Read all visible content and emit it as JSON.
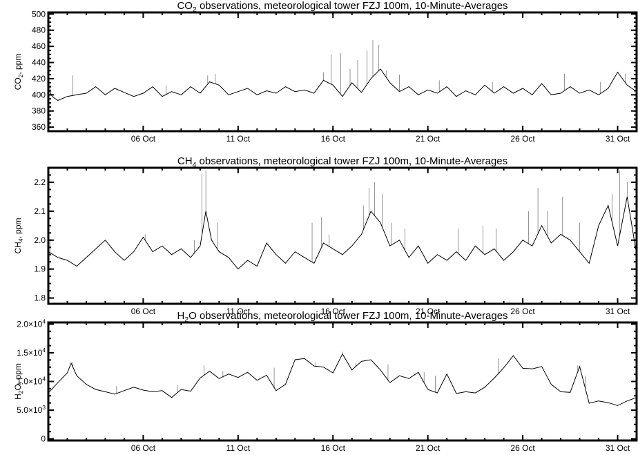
{
  "chart_data": [
    {
      "type": "line",
      "title_main": "CO",
      "title_sub": "2",
      "title_rest": " observations, meteorological tower FZJ 100m, 10-Minute-Averages",
      "ylabel_main": "CO",
      "ylabel_sub": "2",
      "ylabel_rest": ", ppm",
      "xlim": [
        1,
        32
      ],
      "ylim": [
        355,
        502
      ],
      "yticks": [
        {
          "v": 360,
          "label": "360"
        },
        {
          "v": 380,
          "label": "380"
        },
        {
          "v": 400,
          "label": "400"
        },
        {
          "v": 420,
          "label": "420"
        },
        {
          "v": 440,
          "label": "440"
        },
        {
          "v": 460,
          "label": "460"
        },
        {
          "v": 480,
          "label": "480"
        },
        {
          "v": 500,
          "label": "500"
        }
      ],
      "xticks": [
        {
          "day": 6,
          "label": "06 Oct"
        },
        {
          "day": 11,
          "label": "11 Oct"
        },
        {
          "day": 16,
          "label": "16 Oct"
        },
        {
          "day": 21,
          "label": "21 Oct"
        },
        {
          "day": 26,
          "label": "26 Oct"
        },
        {
          "day": 31,
          "label": "31 Oct"
        }
      ],
      "series": [
        {
          "x": [
            1.0,
            1.2,
            1.5,
            2.0,
            2.5,
            3.0,
            3.5,
            4.0,
            4.5,
            5.0,
            5.5,
            6.0,
            6.5,
            7.0,
            7.5,
            8.0,
            8.5,
            9.0,
            9.5,
            10.0,
            10.5,
            11.0,
            11.5,
            12.0,
            12.5,
            13.0,
            13.5,
            14.0,
            14.5,
            15.0,
            15.5,
            16.0,
            16.5,
            17.0,
            17.5,
            18.0,
            18.5,
            19.0,
            19.5,
            20.0,
            20.5,
            21.0,
            21.5,
            22.0,
            22.5,
            23.0,
            23.5,
            24.0,
            24.5,
            25.0,
            25.5,
            26.0,
            26.5,
            27.0,
            27.5,
            28.0,
            28.5,
            29.0,
            29.5,
            30.0,
            30.5,
            31.0,
            31.5,
            32.0
          ],
          "y": [
            408,
            398,
            393,
            398,
            400,
            402,
            410,
            400,
            408,
            403,
            398,
            402,
            410,
            398,
            404,
            400,
            410,
            402,
            416,
            412,
            400,
            404,
            408,
            400,
            405,
            402,
            410,
            404,
            406,
            402,
            418,
            412,
            398,
            415,
            403,
            420,
            432,
            415,
            404,
            410,
            400,
            406,
            402,
            410,
            398,
            405,
            400,
            412,
            402,
            410,
            402,
            408,
            400,
            414,
            400,
            402,
            410,
            402,
            406,
            400,
            408,
            428,
            412,
            404
          ]
        }
      ],
      "spikes": [
        {
          "x": 1.1,
          "y": 412
        },
        {
          "x": 2.3,
          "y": 424
        },
        {
          "x": 7.2,
          "y": 412
        },
        {
          "x": 9.4,
          "y": 424
        },
        {
          "x": 9.8,
          "y": 426
        },
        {
          "x": 15.5,
          "y": 428
        },
        {
          "x": 15.9,
          "y": 450
        },
        {
          "x": 16.4,
          "y": 452
        },
        {
          "x": 16.9,
          "y": 432
        },
        {
          "x": 17.3,
          "y": 443
        },
        {
          "x": 17.8,
          "y": 455
        },
        {
          "x": 18.1,
          "y": 468
        },
        {
          "x": 18.4,
          "y": 462
        },
        {
          "x": 18.8,
          "y": 430
        },
        {
          "x": 19.5,
          "y": 425
        },
        {
          "x": 21.6,
          "y": 418
        },
        {
          "x": 24.4,
          "y": 416
        },
        {
          "x": 28.2,
          "y": 426
        },
        {
          "x": 30.1,
          "y": 416
        },
        {
          "x": 31.4,
          "y": 426
        }
      ]
    },
    {
      "type": "line",
      "title_main": "CH",
      "title_sub": "4",
      "title_rest": " observations, meteorological tower FZJ 100m, 10-Minute-Averages",
      "ylabel_main": "CH",
      "ylabel_sub": "4",
      "ylabel_rest": ", ppm",
      "xlim": [
        1,
        32
      ],
      "ylim": [
        1.78,
        2.25
      ],
      "yticks": [
        {
          "v": 1.8,
          "label": "1.8"
        },
        {
          "v": 1.9,
          "label": "1.9"
        },
        {
          "v": 2.0,
          "label": "2.0"
        },
        {
          "v": 2.1,
          "label": "2.1"
        },
        {
          "v": 2.2,
          "label": "2.2"
        }
      ],
      "xticks": [
        {
          "day": 6,
          "label": "06 Oct"
        },
        {
          "day": 11,
          "label": "11 Oct"
        },
        {
          "day": 16,
          "label": "16 Oct"
        },
        {
          "day": 21,
          "label": "21 Oct"
        },
        {
          "day": 26,
          "label": "26 Oct"
        },
        {
          "day": 31,
          "label": "31 Oct"
        }
      ],
      "series": [
        {
          "x": [
            1.0,
            1.5,
            2.0,
            2.5,
            3.0,
            3.5,
            4.0,
            4.5,
            5.0,
            5.5,
            6.0,
            6.5,
            7.0,
            7.5,
            8.0,
            8.5,
            9.0,
            9.3,
            9.6,
            10.0,
            10.5,
            11.0,
            11.5,
            12.0,
            12.5,
            13.0,
            13.5,
            14.0,
            14.5,
            15.0,
            15.5,
            16.0,
            16.5,
            17.0,
            17.5,
            18.0,
            18.5,
            19.0,
            19.5,
            20.0,
            20.5,
            21.0,
            21.5,
            22.0,
            22.5,
            23.0,
            23.5,
            24.0,
            24.5,
            25.0,
            25.5,
            26.0,
            26.5,
            27.0,
            27.5,
            28.0,
            28.5,
            29.0,
            29.5,
            30.0,
            30.5,
            31.0,
            31.5,
            32.0
          ],
          "y": [
            1.96,
            1.94,
            1.93,
            1.91,
            1.94,
            1.97,
            2.0,
            1.96,
            1.93,
            1.96,
            2.01,
            1.96,
            1.98,
            1.95,
            1.97,
            1.94,
            1.98,
            2.1,
            2.0,
            1.96,
            1.94,
            1.9,
            1.93,
            1.91,
            1.99,
            1.95,
            1.92,
            1.96,
            1.94,
            1.92,
            1.99,
            1.97,
            1.95,
            1.98,
            2.02,
            2.1,
            2.06,
            1.98,
            2.0,
            1.94,
            1.98,
            1.92,
            1.95,
            1.93,
            1.96,
            1.93,
            1.98,
            1.95,
            1.97,
            1.93,
            1.96,
            2.0,
            1.98,
            2.05,
            1.99,
            2.02,
            2.0,
            1.96,
            1.92,
            2.05,
            2.12,
            1.98,
            2.15,
            1.95
          ]
        }
      ],
      "spikes": [
        {
          "x": 1.1,
          "y": 2.0
        },
        {
          "x": 6.1,
          "y": 2.02
        },
        {
          "x": 8.7,
          "y": 2.0
        },
        {
          "x": 9.1,
          "y": 2.23
        },
        {
          "x": 9.3,
          "y": 2.24
        },
        {
          "x": 9.9,
          "y": 2.06
        },
        {
          "x": 14.9,
          "y": 2.06
        },
        {
          "x": 15.4,
          "y": 2.08
        },
        {
          "x": 15.8,
          "y": 2.02
        },
        {
          "x": 17.6,
          "y": 2.12
        },
        {
          "x": 17.9,
          "y": 2.18
        },
        {
          "x": 18.2,
          "y": 2.2
        },
        {
          "x": 18.6,
          "y": 2.16
        },
        {
          "x": 19.1,
          "y": 2.06
        },
        {
          "x": 19.8,
          "y": 2.04
        },
        {
          "x": 22.6,
          "y": 2.04
        },
        {
          "x": 23.9,
          "y": 2.05
        },
        {
          "x": 24.6,
          "y": 2.04
        },
        {
          "x": 26.3,
          "y": 2.1
        },
        {
          "x": 26.8,
          "y": 2.18
        },
        {
          "x": 27.3,
          "y": 2.1
        },
        {
          "x": 28.1,
          "y": 2.15
        },
        {
          "x": 29.0,
          "y": 2.06
        },
        {
          "x": 30.7,
          "y": 2.16
        },
        {
          "x": 31.1,
          "y": 2.24
        },
        {
          "x": 31.5,
          "y": 2.2
        }
      ]
    },
    {
      "type": "line",
      "title_main": "H",
      "title_sub": "2",
      "title_rest": "O observations, meteorological tower FZJ 100m, 10-Minute-Averages",
      "ylabel_main": "H",
      "ylabel_sub": "2",
      "ylabel_rest": "O, ppm",
      "xlim": [
        1,
        32
      ],
      "ylim": [
        -300,
        20300
      ],
      "yticks": [
        {
          "v": 0,
          "label": "0",
          "exp": ""
        },
        {
          "v": 5000,
          "label": "5.0×10",
          "exp": "3"
        },
        {
          "v": 10000,
          "label": "1.0×10",
          "exp": "4"
        },
        {
          "v": 15000,
          "label": "1.5×10",
          "exp": "4"
        },
        {
          "v": 20000,
          "label": "2.0×10",
          "exp": "4"
        }
      ],
      "xticks": [
        {
          "day": 6,
          "label": "06 Oct"
        },
        {
          "day": 11,
          "label": "11 Oct"
        },
        {
          "day": 16,
          "label": "16 Oct"
        },
        {
          "day": 21,
          "label": "21 Oct"
        },
        {
          "day": 26,
          "label": "26 Oct"
        },
        {
          "day": 31,
          "label": "31 Oct"
        }
      ],
      "series": [
        {
          "x": [
            1.0,
            1.5,
            2.0,
            2.2,
            2.5,
            3.0,
            3.5,
            4.0,
            4.5,
            5.0,
            5.5,
            6.0,
            6.5,
            7.0,
            7.5,
            8.0,
            8.5,
            9.0,
            9.5,
            10.0,
            10.5,
            11.0,
            11.5,
            12.0,
            12.5,
            13.0,
            13.5,
            14.0,
            14.5,
            15.0,
            15.5,
            16.0,
            16.5,
            17.0,
            17.5,
            18.0,
            18.5,
            19.0,
            19.5,
            20.0,
            20.5,
            21.0,
            21.5,
            22.0,
            22.5,
            23.0,
            23.5,
            24.0,
            24.5,
            25.0,
            25.5,
            26.0,
            26.5,
            27.0,
            27.5,
            28.0,
            28.5,
            29.0,
            29.5,
            30.0,
            30.5,
            31.0,
            31.5,
            32.0
          ],
          "y": [
            8000,
            9800,
            11500,
            13200,
            11000,
            9500,
            8600,
            8200,
            7800,
            8400,
            9000,
            8500,
            8200,
            8400,
            7200,
            8600,
            8300,
            10600,
            11800,
            10500,
            11300,
            10700,
            11600,
            10200,
            11100,
            8400,
            9500,
            13800,
            14000,
            12700,
            12500,
            11500,
            14800,
            12000,
            13500,
            13800,
            12000,
            9800,
            11000,
            10500,
            11600,
            8600,
            8000,
            11300,
            7900,
            8200,
            8000,
            9000,
            10600,
            12400,
            14500,
            12300,
            12200,
            12600,
            9500,
            8200,
            8100,
            12600,
            6200,
            6600,
            6300,
            5800,
            6600,
            7200
          ]
        }
      ],
      "spikes": [
        {
          "x": 2.3,
          "y": 13400
        },
        {
          "x": 4.6,
          "y": 9200
        },
        {
          "x": 7.8,
          "y": 9400
        },
        {
          "x": 9.2,
          "y": 12800
        },
        {
          "x": 10.2,
          "y": 11800
        },
        {
          "x": 12.9,
          "y": 12400
        },
        {
          "x": 15.1,
          "y": 13400
        },
        {
          "x": 16.5,
          "y": 15200
        },
        {
          "x": 17.2,
          "y": 13200
        },
        {
          "x": 18.9,
          "y": 13000
        },
        {
          "x": 20.8,
          "y": 11600
        },
        {
          "x": 21.4,
          "y": 11000
        },
        {
          "x": 24.7,
          "y": 14000
        },
        {
          "x": 28.9,
          "y": 12800
        },
        {
          "x": 29.3,
          "y": 11000
        }
      ]
    }
  ]
}
